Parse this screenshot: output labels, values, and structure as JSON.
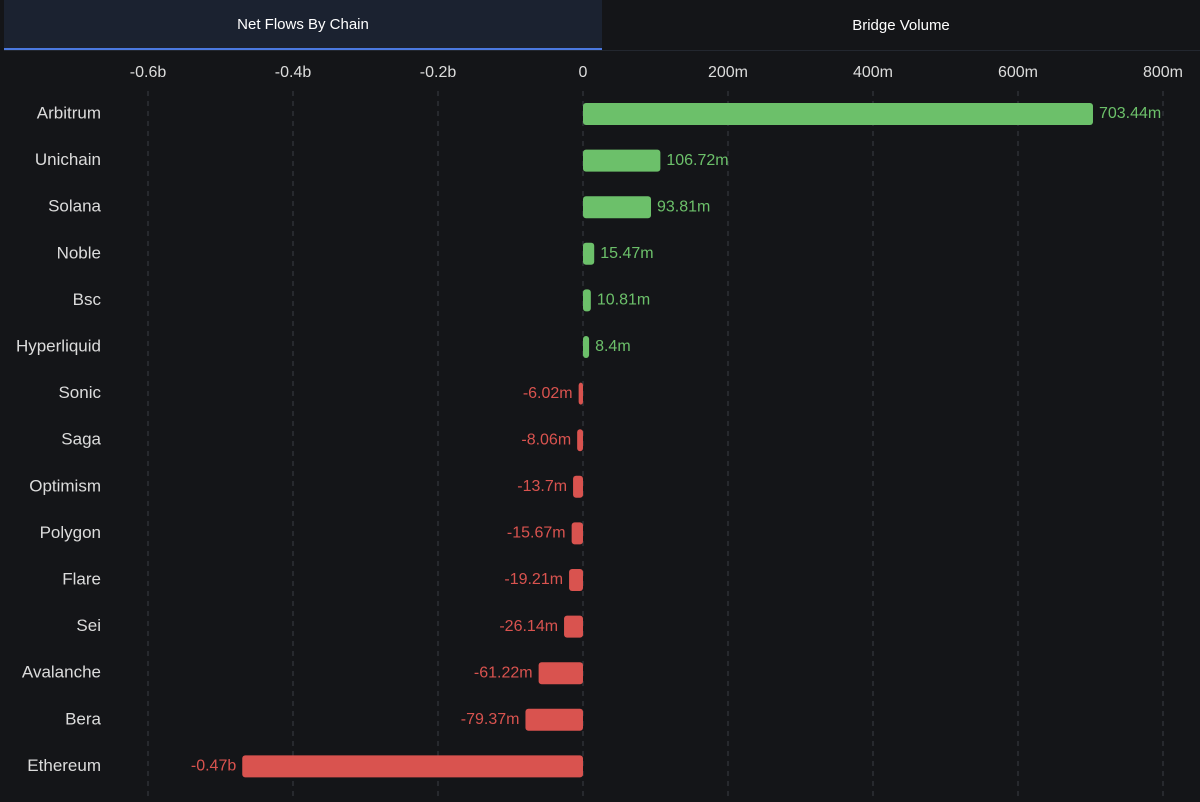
{
  "tabs": [
    {
      "label": "Net Flows By Chain",
      "active": true
    },
    {
      "label": "Bridge Volume",
      "active": false
    }
  ],
  "colors": {
    "background": "#141518",
    "positive": "#6cc06a",
    "negative": "#d9534f",
    "grid": "#3a3d44",
    "axis_text": "#dcdcdc",
    "tab_active_bg": "#1b2230",
    "tab_indicator": "#4b79e0"
  },
  "chart_data": {
    "type": "bar",
    "orientation": "horizontal",
    "title": "",
    "xlabel": "",
    "ylabel": "",
    "xlim": [
      -600,
      800
    ],
    "unit": "m",
    "grid": true,
    "x_ticks": [
      {
        "value": -600,
        "label": "-0.6b"
      },
      {
        "value": -400,
        "label": "-0.4b"
      },
      {
        "value": -200,
        "label": "-0.2b"
      },
      {
        "value": 0,
        "label": "0"
      },
      {
        "value": 200,
        "label": "200m"
      },
      {
        "value": 400,
        "label": "400m"
      },
      {
        "value": 600,
        "label": "600m"
      },
      {
        "value": 800,
        "label": "800m"
      }
    ],
    "categories": [
      "Arbitrum",
      "Unichain",
      "Solana",
      "Noble",
      "Bsc",
      "Hyperliquid",
      "Sonic",
      "Saga",
      "Optimism",
      "Polygon",
      "Flare",
      "Sei",
      "Avalanche",
      "Bera",
      "Ethereum"
    ],
    "values": [
      703.44,
      106.72,
      93.81,
      15.47,
      10.81,
      8.4,
      -6.02,
      -8.06,
      -13.7,
      -15.67,
      -19.21,
      -26.14,
      -61.22,
      -79.37,
      -470
    ],
    "data_labels": [
      "703.44m",
      "106.72m",
      "93.81m",
      "15.47m",
      "10.81m",
      "8.4m",
      "-6.02m",
      "-8.06m",
      "-13.7m",
      "-15.67m",
      "-19.21m",
      "-26.14m",
      "-61.22m",
      "-79.37m",
      "-0.47b"
    ]
  }
}
